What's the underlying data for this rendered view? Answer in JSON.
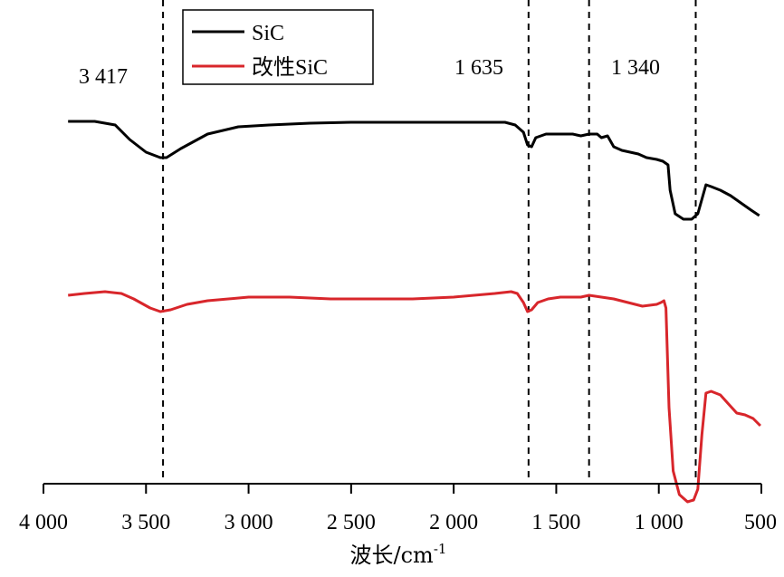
{
  "chart_data": {
    "type": "line",
    "xlabel": "波长/cm",
    "xlabel_superscript": "-1",
    "ylabel": "",
    "xlim": [
      4000,
      500
    ],
    "x_reversed": true,
    "y_axis_shown": false,
    "grid": false,
    "legend_position": "top-left",
    "x_ticks": [
      {
        "value": 4000,
        "label": "4 000"
      },
      {
        "value": 3500,
        "label": "3 500"
      },
      {
        "value": 3000,
        "label": "3 000"
      },
      {
        "value": 2500,
        "label": "2 500"
      },
      {
        "value": 2000,
        "label": "2 000"
      },
      {
        "value": 1500,
        "label": "1 500"
      },
      {
        "value": 1000,
        "label": "1 000"
      },
      {
        "value": 500,
        "label": "500"
      }
    ],
    "reference_lines": [
      {
        "x": 3417,
        "label": "3 417"
      },
      {
        "x": 1635,
        "label": "1 635"
      },
      {
        "x": 1340,
        "label": "1 340"
      },
      {
        "x": 820,
        "label": ""
      }
    ],
    "series": [
      {
        "name": "SiC",
        "color": "#000000",
        "points": [
          [
            3880,
            0.98
          ],
          [
            3750,
            0.98
          ],
          [
            3650,
            0.96
          ],
          [
            3580,
            0.88
          ],
          [
            3500,
            0.81
          ],
          [
            3430,
            0.78
          ],
          [
            3400,
            0.78
          ],
          [
            3330,
            0.83
          ],
          [
            3200,
            0.91
          ],
          [
            3050,
            0.95
          ],
          [
            2900,
            0.96
          ],
          [
            2700,
            0.97
          ],
          [
            2500,
            0.975
          ],
          [
            2300,
            0.975
          ],
          [
            2100,
            0.975
          ],
          [
            1900,
            0.975
          ],
          [
            1750,
            0.975
          ],
          [
            1700,
            0.96
          ],
          [
            1660,
            0.92
          ],
          [
            1640,
            0.85
          ],
          [
            1620,
            0.84
          ],
          [
            1600,
            0.89
          ],
          [
            1550,
            0.91
          ],
          [
            1480,
            0.91
          ],
          [
            1420,
            0.91
          ],
          [
            1380,
            0.9
          ],
          [
            1340,
            0.91
          ],
          [
            1300,
            0.91
          ],
          [
            1280,
            0.89
          ],
          [
            1250,
            0.9
          ],
          [
            1220,
            0.84
          ],
          [
            1180,
            0.82
          ],
          [
            1100,
            0.8
          ],
          [
            1060,
            0.78
          ],
          [
            1010,
            0.77
          ],
          [
            980,
            0.76
          ],
          [
            955,
            0.74
          ],
          [
            945,
            0.6
          ],
          [
            920,
            0.47
          ],
          [
            880,
            0.44
          ],
          [
            840,
            0.44
          ],
          [
            810,
            0.47
          ],
          [
            790,
            0.55
          ],
          [
            770,
            0.63
          ],
          [
            745,
            0.62
          ],
          [
            700,
            0.6
          ],
          [
            650,
            0.57
          ],
          [
            600,
            0.53
          ],
          [
            550,
            0.49
          ],
          [
            510,
            0.46
          ]
        ]
      },
      {
        "name": "改性SiC",
        "color": "#d8262b",
        "points": [
          [
            3880,
            0.02
          ],
          [
            3800,
            0.03
          ],
          [
            3700,
            0.04
          ],
          [
            3620,
            0.03
          ],
          [
            3560,
            0.0
          ],
          [
            3480,
            -0.05
          ],
          [
            3430,
            -0.07
          ],
          [
            3380,
            -0.06
          ],
          [
            3300,
            -0.03
          ],
          [
            3200,
            -0.01
          ],
          [
            3000,
            0.01
          ],
          [
            2800,
            0.01
          ],
          [
            2600,
            0.0
          ],
          [
            2400,
            0.0
          ],
          [
            2200,
            0.0
          ],
          [
            2000,
            0.01
          ],
          [
            1800,
            0.03
          ],
          [
            1720,
            0.04
          ],
          [
            1690,
            0.03
          ],
          [
            1660,
            -0.02
          ],
          [
            1640,
            -0.07
          ],
          [
            1620,
            -0.06
          ],
          [
            1590,
            -0.02
          ],
          [
            1540,
            0.0
          ],
          [
            1480,
            0.01
          ],
          [
            1420,
            0.01
          ],
          [
            1380,
            0.01
          ],
          [
            1340,
            0.02
          ],
          [
            1280,
            0.01
          ],
          [
            1220,
            0.0
          ],
          [
            1150,
            -0.02
          ],
          [
            1080,
            -0.04
          ],
          [
            1010,
            -0.03
          ],
          [
            990,
            -0.02
          ],
          [
            975,
            -0.01
          ],
          [
            965,
            -0.05
          ],
          [
            950,
            -0.6
          ],
          [
            930,
            -0.95
          ],
          [
            900,
            -1.08
          ],
          [
            860,
            -1.12
          ],
          [
            830,
            -1.11
          ],
          [
            810,
            -1.05
          ],
          [
            790,
            -0.75
          ],
          [
            770,
            -0.52
          ],
          [
            745,
            -0.51
          ],
          [
            700,
            -0.53
          ],
          [
            660,
            -0.58
          ],
          [
            620,
            -0.63
          ],
          [
            580,
            -0.64
          ],
          [
            540,
            -0.66
          ],
          [
            505,
            -0.7
          ]
        ]
      }
    ]
  }
}
